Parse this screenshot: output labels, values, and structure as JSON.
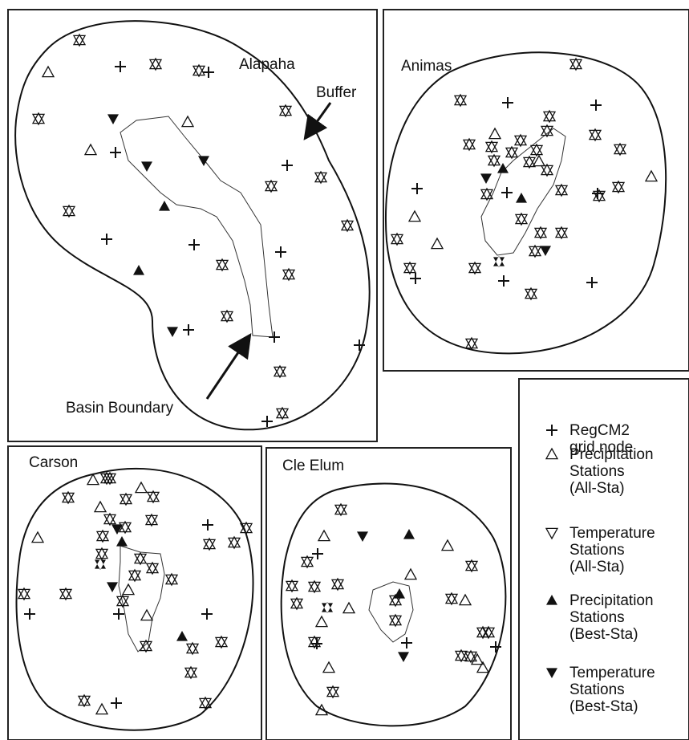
{
  "panels": [
    {
      "name": "Alapaha"
    },
    {
      "name": "Animas"
    },
    {
      "name": "Carson"
    },
    {
      "name": "Cle Elum"
    }
  ],
  "annotations": {
    "buffer": "Buffer",
    "basin_boundary": "Basin Boundary"
  },
  "legend": [
    {
      "lines": [
        "RegCM2",
        "grid node"
      ]
    },
    {
      "lines": [
        "Precipitation",
        "Stations",
        "(All-Sta)"
      ]
    },
    {
      "lines": [
        "Temperature",
        "Stations",
        "(All-Sta)"
      ]
    },
    {
      "lines": [
        "Precipitation",
        "Stations",
        "(Best-Sta)"
      ]
    },
    {
      "lines": [
        "Temperature",
        "Stations",
        "(Best-Sta)"
      ]
    }
  ]
}
